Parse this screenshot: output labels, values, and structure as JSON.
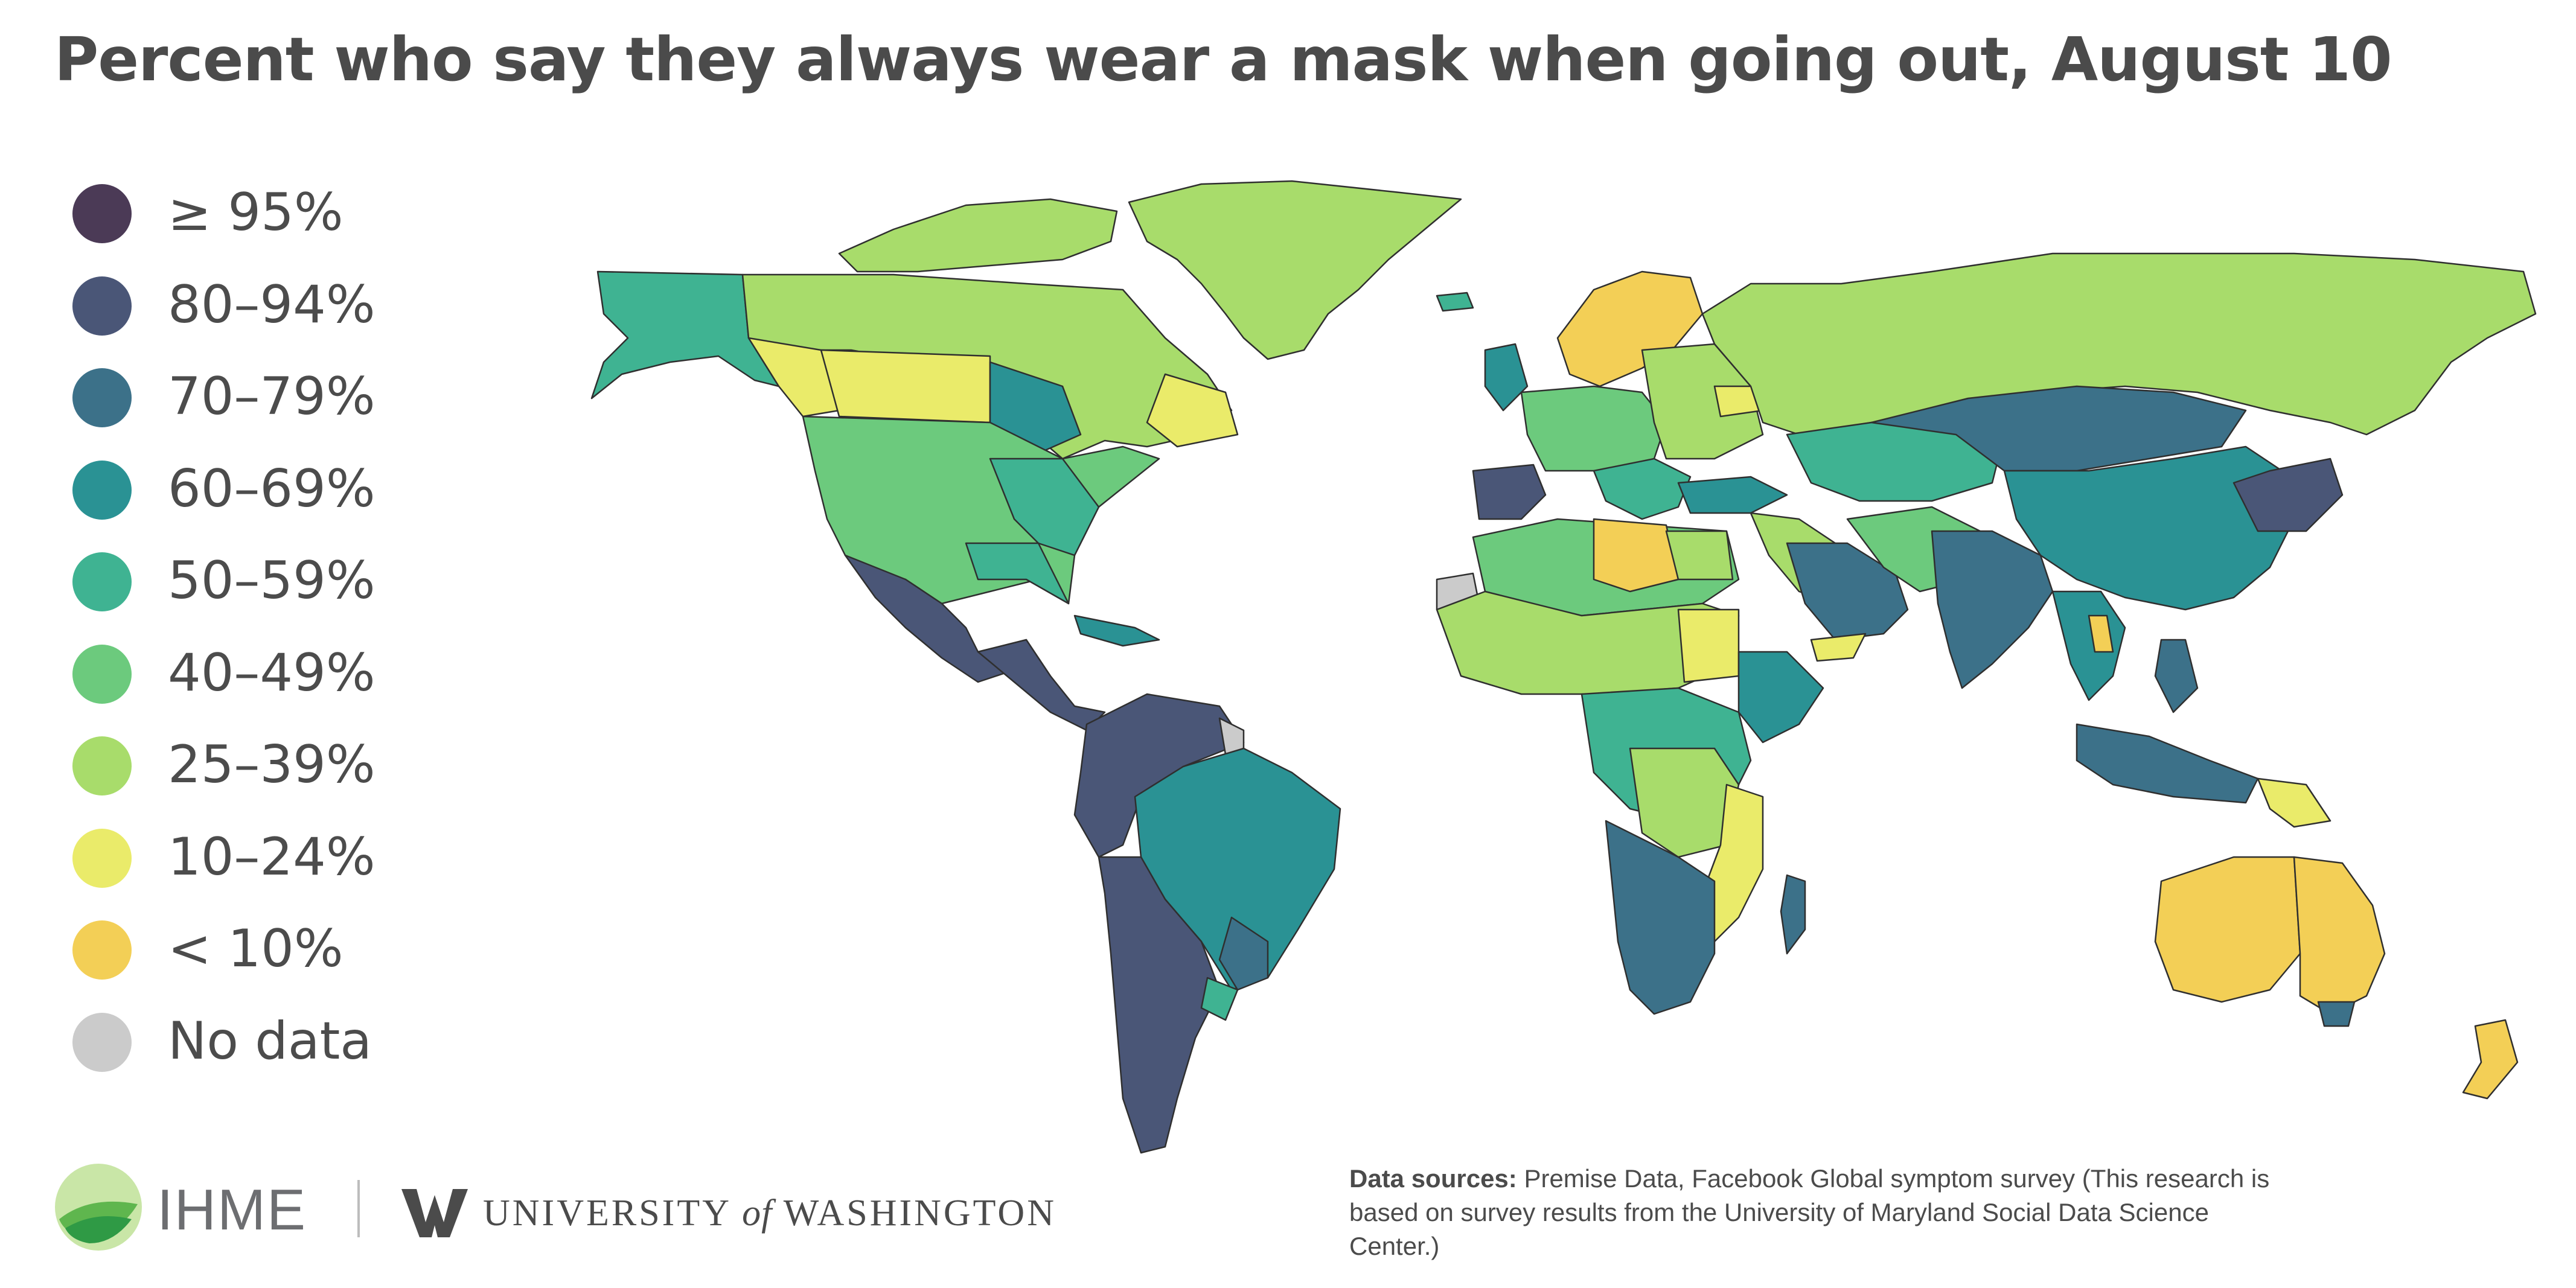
{
  "title": "Percent who say they always wear a mask when going out, August 10",
  "legend": [
    {
      "label": "≥ 95%",
      "color": "#4b3a56"
    },
    {
      "label": "80–94%",
      "color": "#4a5677"
    },
    {
      "label": "70–79%",
      "color": "#3c7189"
    },
    {
      "label": "60–69%",
      "color": "#2a9294"
    },
    {
      "label": "50–59%",
      "color": "#3fb392"
    },
    {
      "label": "40–49%",
      "color": "#6cca7d"
    },
    {
      "label": "25–39%",
      "color": "#a8dc6b"
    },
    {
      "label": "10–24%",
      "color": "#eaeb6a"
    },
    {
      "label": "< 10%",
      "color": "#f3cf56"
    },
    {
      "label": "No data",
      "color": "#cbcbcb"
    }
  ],
  "branding": {
    "ihme": "IHME",
    "uw_pre": "UNIVERSITY",
    "uw_of": "of",
    "uw_post": "WASHINGTON",
    "uw_letter": "W"
  },
  "sources": {
    "label": "Data sources:",
    "text": "Premise Data, Facebook Global symptom survey (This research is based on survey results from the University of Maryland Social Data Science Center.)"
  },
  "icons": [
    "ihme-logo-icon",
    "uw-w-icon"
  ]
}
